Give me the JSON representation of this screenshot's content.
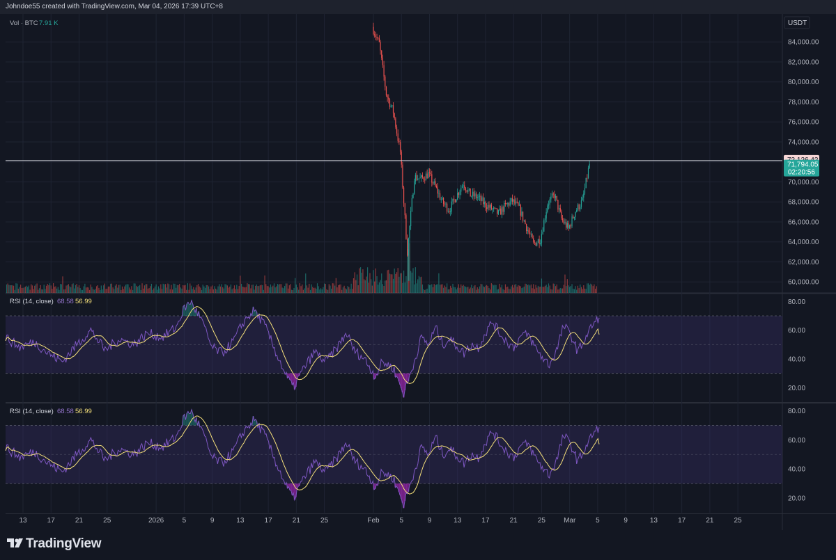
{
  "header": {
    "text": "Johndoe55 created with TradingView.com, Mar 04, 2026 17:39 UTC+8"
  },
  "price_pane": {
    "currency": "USDT",
    "volume_legend": {
      "label": "Vol · BTC",
      "value": "7.91 K"
    },
    "horizontal_line_label": "72,126.42",
    "last_price_label": "71,794.05",
    "countdown_label": "02:20:56"
  },
  "rsi_pane_1": {
    "label": "RSI (14, close)",
    "rsi_value": "68.58",
    "ma_value": "56.99"
  },
  "rsi_pane_2": {
    "label": "RSI (14, close)",
    "rsi_value": "68.58",
    "ma_value": "56.99"
  },
  "footer": {
    "brand": "TradingView"
  },
  "colors": {
    "background": "#131722",
    "grid": "#1f2433",
    "up": "#26a69a",
    "down": "#ef5350",
    "rsi_line": "#7e57c2",
    "rsi_ma": "#f7e27b",
    "rsi_band": "#3a2e6b",
    "last_price_bg": "#26a69a",
    "hline_label_bg": "#f8d7d7"
  },
  "chart_data": [
    {
      "type": "candlestick",
      "title": "",
      "ylabel": "USDT",
      "ylim": [
        58900,
        86800
      ],
      "y_ticks": [
        60000,
        62000,
        64000,
        66000,
        68000,
        70000,
        72000,
        74000,
        76000,
        78000,
        80000,
        82000,
        84000
      ],
      "y_tick_labels": [
        "60,000.00",
        "62,000.00",
        "64,000.00",
        "66,000.00",
        "68,000.00",
        "70,000.00",
        "72,000.00",
        "74,000.00",
        "76,000.00",
        "78,000.00",
        "80,000.00",
        "82,000.00",
        "84,000.00"
      ],
      "x_tick_labels": [
        "13",
        "17",
        "21",
        "25",
        "2026",
        "5",
        "9",
        "13",
        "17",
        "21",
        "25",
        "Feb",
        "5",
        "9",
        "13",
        "17",
        "21",
        "25",
        "Mar",
        "5",
        "9",
        "13",
        "17",
        "21",
        "25"
      ],
      "horizontal_line": 72126.42,
      "last_price": 71794.05,
      "anchors": [
        [
          "Feb 1",
          85500
        ],
        [
          "Feb 2",
          83800
        ],
        [
          "Feb 3",
          78800
        ],
        [
          "Feb 4",
          77000
        ],
        [
          "Feb 5",
          73000
        ],
        [
          "Feb 6",
          63000
        ],
        [
          "Feb 7",
          70500
        ],
        [
          "Feb 8",
          70300
        ],
        [
          "Feb 9",
          70800
        ],
        [
          "Feb 10",
          69500
        ],
        [
          "Feb 11",
          68000
        ],
        [
          "Feb 12",
          67200
        ],
        [
          "Feb 13",
          68600
        ],
        [
          "Feb 14",
          69900
        ],
        [
          "Feb 15",
          68700
        ],
        [
          "Feb 16",
          68500
        ],
        [
          "Feb 17",
          67800
        ],
        [
          "Feb 18",
          67300
        ],
        [
          "Feb 19",
          66800
        ],
        [
          "Feb 20",
          67600
        ],
        [
          "Feb 21",
          68100
        ],
        [
          "Feb 22",
          67300
        ],
        [
          "Feb 23",
          65500
        ],
        [
          "Feb 24",
          63800
        ],
        [
          "Feb 25",
          64300
        ],
        [
          "Feb 26",
          67800
        ],
        [
          "Feb 27",
          68700
        ],
        [
          "Feb 28",
          66300
        ],
        [
          "Mar 1",
          65300
        ],
        [
          "Mar 2",
          67100
        ],
        [
          "Mar 3",
          68100
        ],
        [
          "Mar 4",
          71794
        ]
      ],
      "series": [
        {
          "name": "Vol · BTC",
          "type": "volume",
          "last_value": "7.91 K"
        }
      ]
    },
    {
      "type": "line",
      "title": "RSI (14, close)",
      "ylim": [
        10,
        85
      ],
      "y_ticks": [
        20,
        40,
        60,
        80
      ],
      "y_tick_labels": [
        "20.00",
        "40.00",
        "60.00",
        "80.00"
      ],
      "bands": [
        30,
        50,
        70
      ],
      "anchors": [
        [
          0,
          55
        ],
        [
          4,
          48
        ],
        [
          8,
          52
        ],
        [
          12,
          44
        ],
        [
          16,
          38
        ],
        [
          20,
          50
        ],
        [
          24,
          60
        ],
        [
          28,
          46
        ],
        [
          32,
          54
        ],
        [
          36,
          50
        ],
        [
          40,
          58
        ],
        [
          44,
          55
        ],
        [
          48,
          62
        ],
        [
          50,
          74
        ],
        [
          52,
          80
        ],
        [
          55,
          68
        ],
        [
          58,
          48
        ],
        [
          61,
          44
        ],
        [
          64,
          52
        ],
        [
          67,
          66
        ],
        [
          70,
          74
        ],
        [
          73,
          63
        ],
        [
          76,
          45
        ],
        [
          79,
          28
        ],
        [
          81,
          20
        ],
        [
          84,
          34
        ],
        [
          87,
          45
        ],
        [
          90,
          38
        ],
        [
          93,
          47
        ],
        [
          96,
          58
        ],
        [
          98,
          46
        ],
        [
          101,
          40
        ],
        [
          104,
          28
        ],
        [
          106,
          38
        ],
        [
          109,
          34
        ],
        [
          112,
          16
        ],
        [
          114,
          30
        ],
        [
          117,
          55
        ],
        [
          119,
          50
        ],
        [
          121,
          62
        ],
        [
          123,
          50
        ],
        [
          125,
          54
        ],
        [
          127,
          49
        ],
        [
          129,
          44
        ],
        [
          131,
          50
        ],
        [
          133,
          48
        ],
        [
          135,
          58
        ],
        [
          137,
          66
        ],
        [
          139,
          58
        ],
        [
          141,
          52
        ],
        [
          143,
          48
        ],
        [
          145,
          56
        ],
        [
          147,
          57
        ],
        [
          149,
          48
        ],
        [
          151,
          41
        ],
        [
          153,
          36
        ],
        [
          155,
          46
        ],
        [
          157,
          63
        ],
        [
          159,
          57
        ],
        [
          161,
          45
        ],
        [
          163,
          54
        ],
        [
          165,
          63
        ],
        [
          167,
          68.58
        ]
      ],
      "series": [
        {
          "name": "RSI",
          "last_value": "68.58"
        },
        {
          "name": "MA",
          "last_value": "56.99"
        }
      ]
    },
    {
      "type": "line",
      "title": "RSI (14, close)",
      "ylim": [
        10,
        85
      ],
      "y_ticks": [
        20,
        40,
        60,
        80
      ],
      "y_tick_labels": [
        "20.00",
        "40.00",
        "60.00",
        "80.00"
      ],
      "bands": [
        30,
        50,
        70
      ],
      "series": [
        {
          "name": "RSI",
          "last_value": "68.58"
        },
        {
          "name": "MA",
          "last_value": "56.99"
        }
      ]
    }
  ]
}
